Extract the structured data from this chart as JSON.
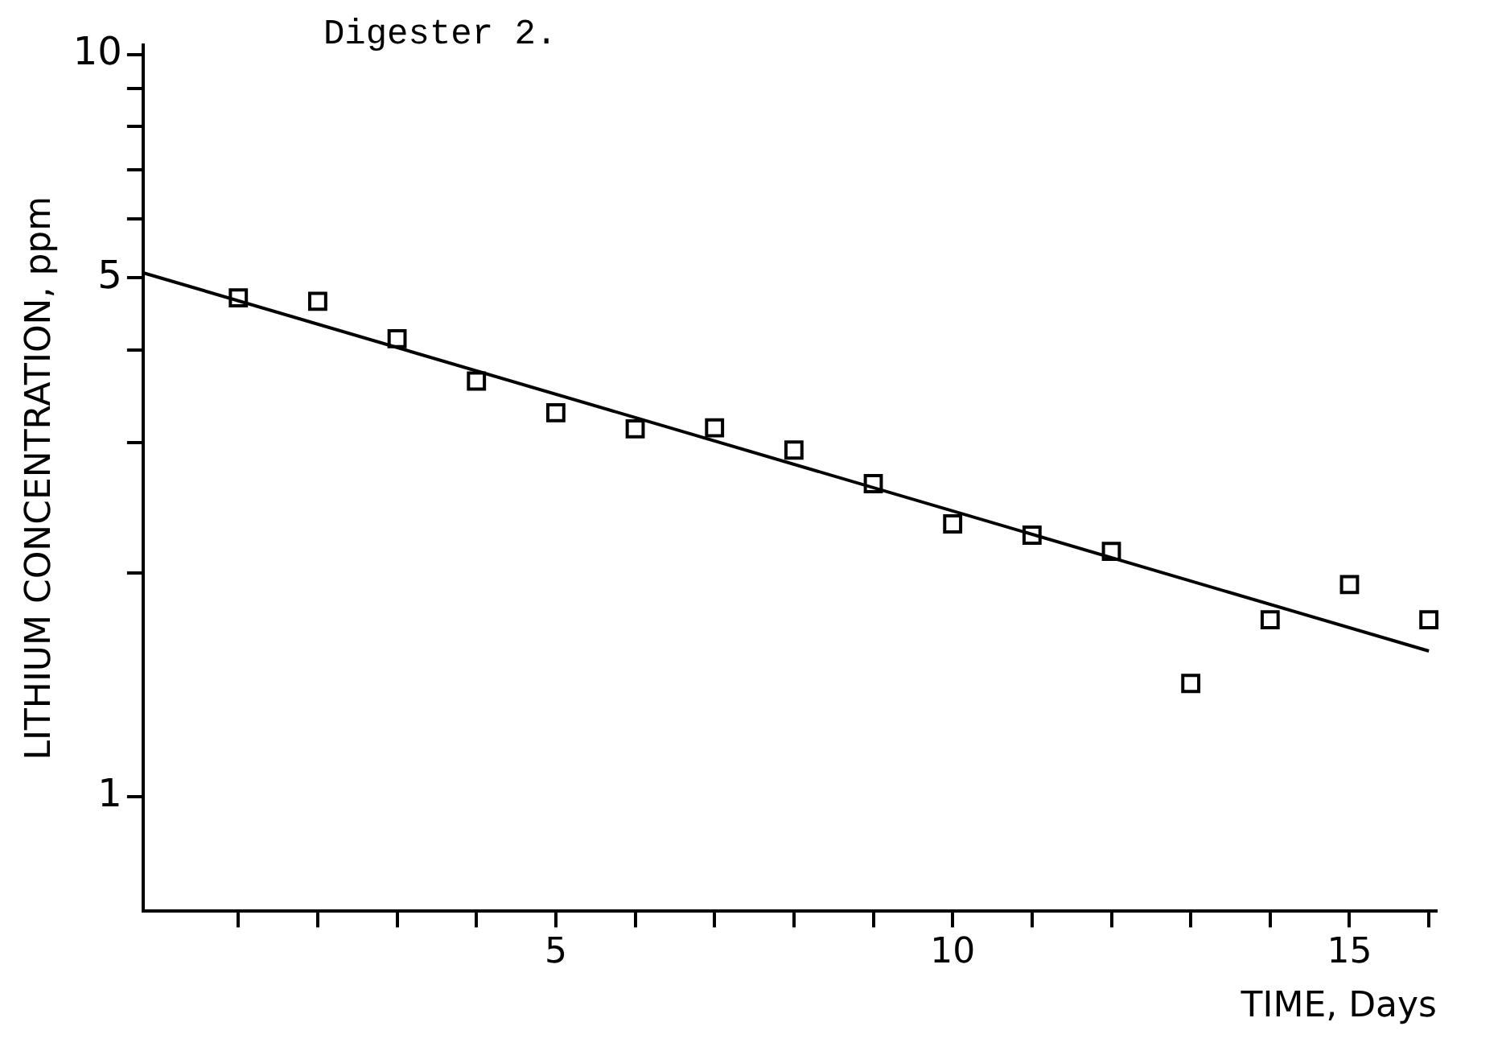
{
  "chart_data": {
    "type": "scatter",
    "title": "Digester 2.",
    "xlabel": "TIME, Days",
    "ylabel": "LITHIUM CONCENTRATION, ppm",
    "log": "y",
    "xlim": [
      -0.2,
      16.1
    ],
    "xticks": [
      {
        "value": 1,
        "label": null
      },
      {
        "value": 2,
        "label": null
      },
      {
        "value": 3,
        "label": null
      },
      {
        "value": 4,
        "label": null
      },
      5,
      {
        "value": 6,
        "label": null
      },
      {
        "value": 7,
        "label": null
      },
      {
        "value": 8,
        "label": null
      },
      {
        "value": 9,
        "label": null
      },
      10,
      {
        "value": 11,
        "label": null
      },
      {
        "value": 12,
        "label": null
      },
      {
        "value": 13,
        "label": null
      },
      {
        "value": 14,
        "label": null
      },
      15,
      {
        "value": 16,
        "label": null
      }
    ],
    "ylim": [
      0.71,
      10.3
    ],
    "yticks": [
      1,
      {
        "value": 2,
        "label": null
      },
      {
        "value": 3,
        "label": null
      },
      {
        "value": 4,
        "label": null
      },
      5,
      {
        "value": 6,
        "label": null
      },
      {
        "value": 7,
        "label": null
      },
      {
        "value": 8,
        "label": null
      },
      {
        "value": 9,
        "label": null
      },
      10
    ],
    "series": [
      {
        "marker": "square",
        "color": "#000000",
        "x": [
          1,
          2,
          3,
          4,
          5,
          6,
          7,
          8,
          9,
          10,
          11,
          12,
          13,
          14,
          15,
          16
        ],
        "values": [
          4.7,
          4.65,
          4.14,
          3.63,
          3.29,
          3.13,
          3.14,
          2.93,
          2.64,
          2.33,
          2.25,
          2.14,
          1.42,
          1.73,
          1.93,
          1.73
        ]
      },
      {
        "type": "line",
        "marker": "none",
        "line_style": "solid",
        "color": "#000000",
        "x": [
          -0.2,
          16
        ],
        "values": [
          5.08,
          1.57
        ]
      }
    ]
  }
}
